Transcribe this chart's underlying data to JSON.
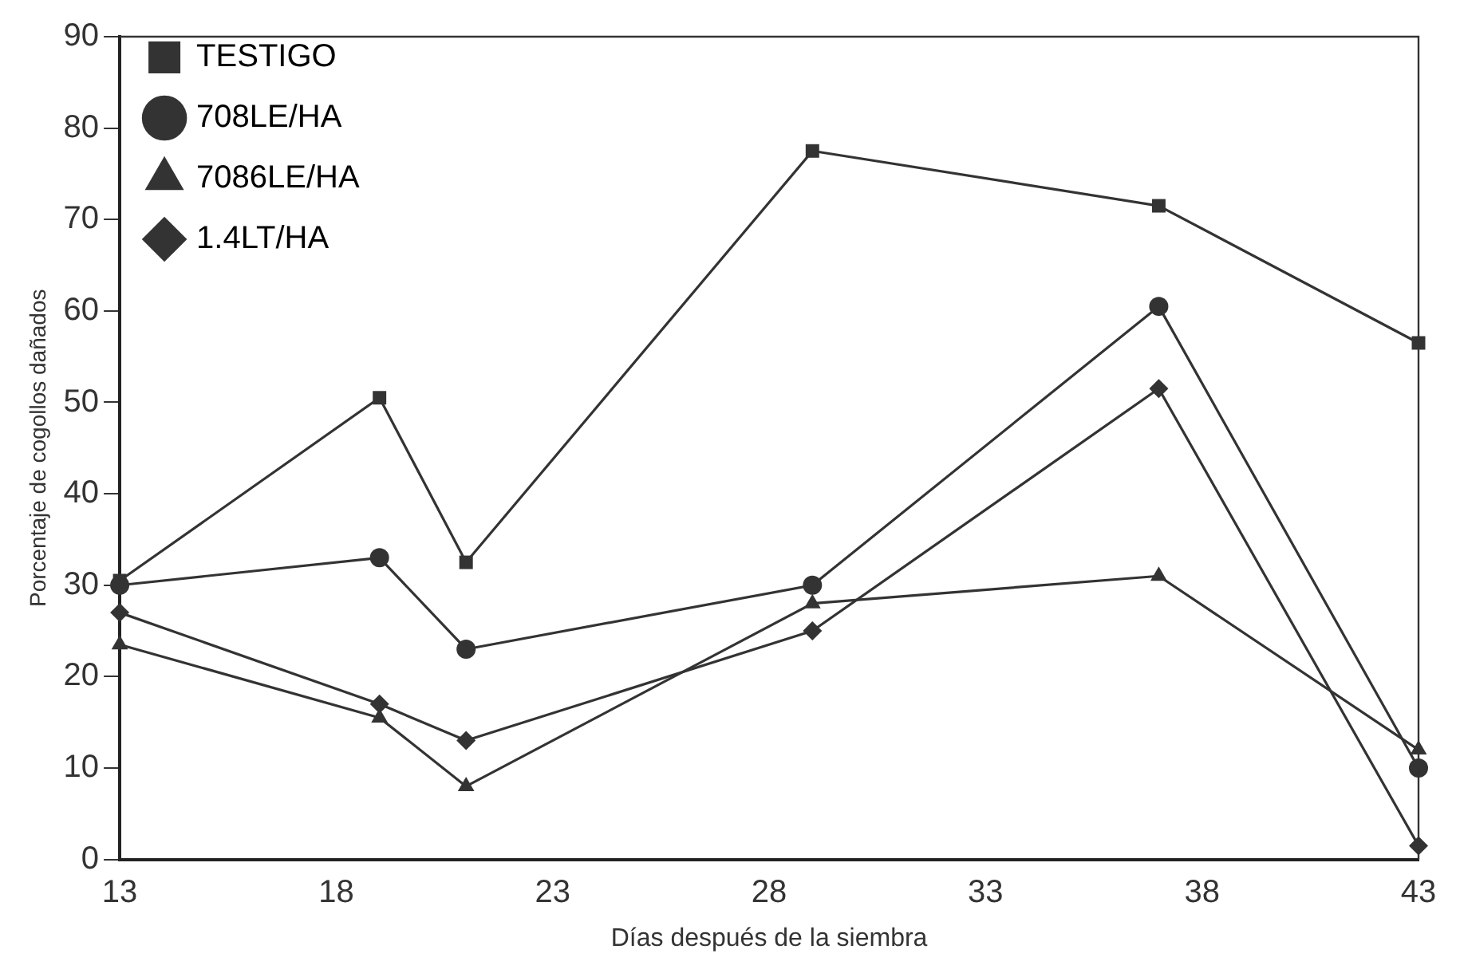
{
  "chart_data": {
    "type": "line",
    "xlabel": "Días después de la siembra",
    "ylabel": "Porcentaje de cogollos dañados",
    "x": [
      13,
      19,
      21,
      29,
      37,
      43
    ],
    "series": [
      {
        "name": "TESTIGO",
        "color": "#333333",
        "marker": "square",
        "values": [
          30.5,
          50.5,
          32.5,
          77.5,
          71.5,
          56.5
        ]
      },
      {
        "name": "708LE/HA",
        "color": "#333333",
        "marker": "circle",
        "values": [
          30,
          33,
          23,
          30,
          60.5,
          10
        ]
      },
      {
        "name": "7086LE/HA",
        "color": "#333333",
        "marker": "triangle",
        "values": [
          23.5,
          15.5,
          8,
          28,
          31,
          12
        ]
      },
      {
        "name": "1.4LT/HA",
        "color": "#333333",
        "marker": "diamond",
        "values": [
          27,
          17,
          13,
          25,
          51.5,
          1.5
        ]
      }
    ],
    "xlim": [
      13,
      43
    ],
    "xticks": [
      13,
      18,
      23,
      28,
      33,
      38,
      43
    ],
    "ylim": [
      0,
      90
    ],
    "yticks": [
      0,
      10,
      20,
      30,
      40,
      50,
      60,
      70,
      80,
      90
    ],
    "grid": false,
    "legend": "top left",
    "line_style": "solid"
  }
}
